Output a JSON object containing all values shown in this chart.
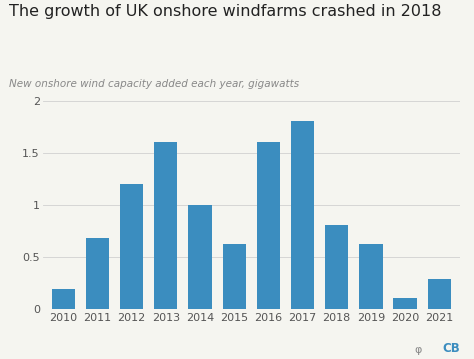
{
  "title": "The growth of UK onshore windfarms crashed in 2018",
  "subtitle": "New onshore wind capacity added each year, gigawatts",
  "years": [
    "2010",
    "2011",
    "2012",
    "2013",
    "2014",
    "2015",
    "2016",
    "2017",
    "2018",
    "2019",
    "2020",
    "2021"
  ],
  "values": [
    0.19,
    0.68,
    1.2,
    1.6,
    1.0,
    0.62,
    1.6,
    1.8,
    0.8,
    0.62,
    0.1,
    0.29
  ],
  "bar_color": "#3b8dbf",
  "background_color": "#f5f5f0",
  "ylim": [
    0,
    2.0
  ],
  "yticks": [
    0,
    0.5,
    1.0,
    1.5,
    2.0
  ],
  "ytick_labels": [
    "0",
    "0.5",
    "1",
    "1.5",
    "2"
  ],
  "title_fontsize": 11.5,
  "subtitle_fontsize": 7.5,
  "tick_fontsize": 8,
  "grid_color": "#d0d0d0",
  "bar_width": 0.68
}
